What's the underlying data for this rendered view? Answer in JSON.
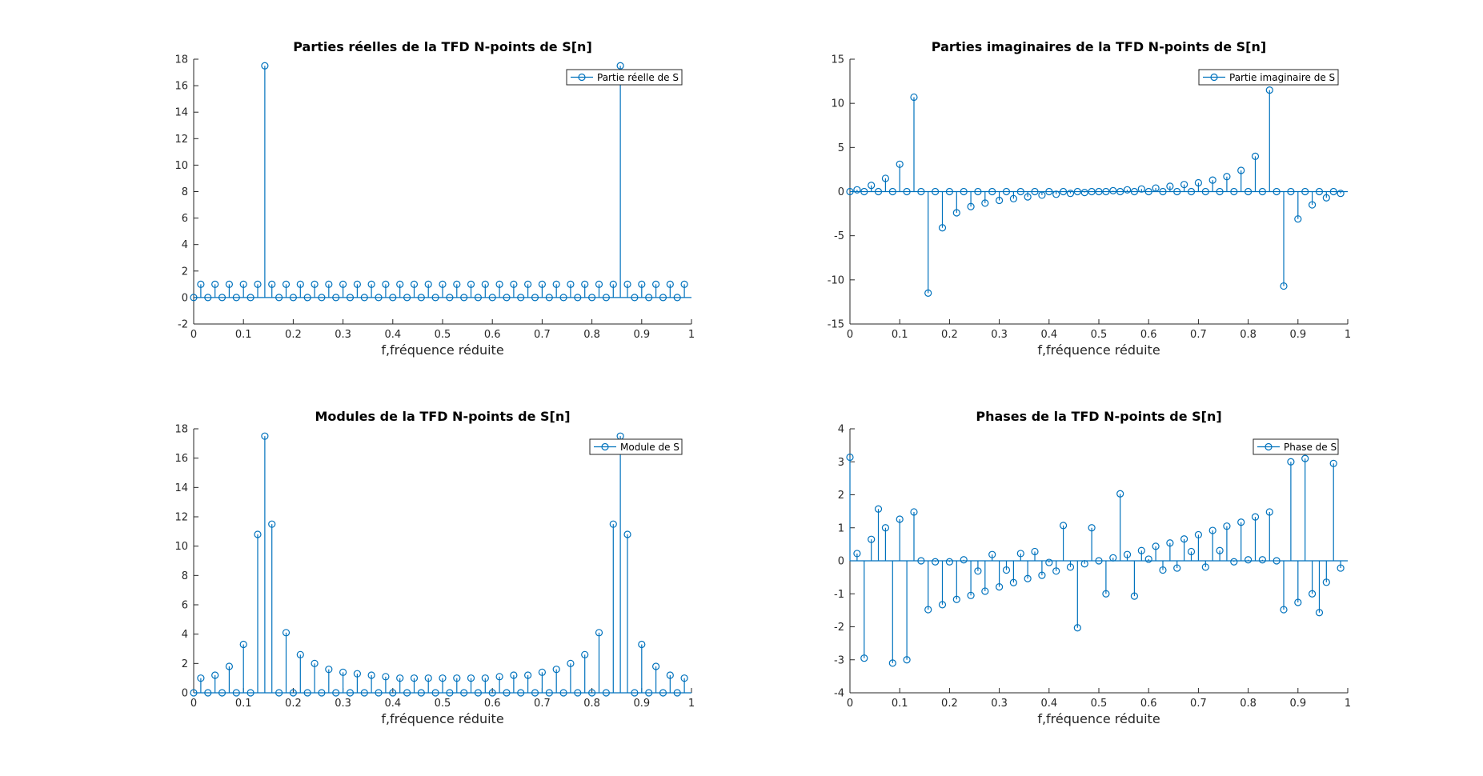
{
  "colors": {
    "series": "#0072BD",
    "axis": "#262626",
    "background": "#ffffff"
  },
  "chart_data": [
    {
      "type": "stem",
      "title": "Parties réelles de la TFD N-points de S[n]",
      "xlabel": "f,fréquence réduite",
      "ylabel": "",
      "xlim": [
        0,
        1
      ],
      "ylim": [
        -2,
        18
      ],
      "xticks": [
        0,
        0.1,
        0.2,
        0.3,
        0.4,
        0.5,
        0.6,
        0.7,
        0.8,
        0.9,
        1
      ],
      "xtick_labels": [
        "0",
        "0.1",
        "0.2",
        "0.3",
        "0.4",
        "0.5",
        "0.6",
        "0.7",
        "0.8",
        "0.9",
        "1"
      ],
      "yticks": [
        -2,
        0,
        2,
        4,
        6,
        8,
        10,
        12,
        14,
        16,
        18
      ],
      "ytick_labels": [
        "-2",
        "0",
        "2",
        "4",
        "6",
        "8",
        "10",
        "12",
        "14",
        "16",
        "18"
      ],
      "legend": {
        "label": "Partie réelle de S",
        "position": "top-right"
      },
      "grid": false,
      "x": [
        0,
        0.0143,
        0.0286,
        0.0429,
        0.0571,
        0.0714,
        0.0857,
        0.1,
        0.1143,
        0.1286,
        0.1429,
        0.1571,
        0.1714,
        0.1857,
        0.2,
        0.2143,
        0.2286,
        0.2429,
        0.2571,
        0.2714,
        0.2857,
        0.3,
        0.3143,
        0.3286,
        0.3429,
        0.3571,
        0.3714,
        0.3857,
        0.4,
        0.4143,
        0.4286,
        0.4429,
        0.4571,
        0.4714,
        0.4857,
        0.5,
        0.5143,
        0.5286,
        0.5429,
        0.5571,
        0.5714,
        0.5857,
        0.6,
        0.6143,
        0.6286,
        0.6429,
        0.6571,
        0.6714,
        0.6857,
        0.7,
        0.7143,
        0.7286,
        0.7429,
        0.7571,
        0.7714,
        0.7857,
        0.8,
        0.8143,
        0.8286,
        0.8429,
        0.8571,
        0.8714,
        0.8857,
        0.9,
        0.9143,
        0.9286,
        0.9429,
        0.9571,
        0.9714,
        0.9857
      ],
      "y": [
        0,
        1,
        0,
        1,
        0,
        1,
        0,
        1,
        0,
        1,
        17.5,
        1,
        0,
        1,
        0,
        1,
        0,
        1,
        0,
        1,
        0,
        1,
        0,
        1,
        0,
        1,
        0,
        1,
        0,
        1,
        0,
        1,
        0,
        1,
        0,
        1,
        0,
        1,
        0,
        1,
        0,
        1,
        0,
        1,
        0,
        1,
        0,
        1,
        0,
        1,
        0,
        1,
        0,
        1,
        0,
        1,
        0,
        1,
        0,
        1,
        17.5,
        1,
        0,
        1,
        0,
        1,
        0,
        1,
        0,
        1
      ]
    },
    {
      "type": "stem",
      "title": "Parties imaginaires de la TFD N-points de S[n]",
      "xlabel": "f,fréquence réduite",
      "ylabel": "",
      "xlim": [
        0,
        1
      ],
      "ylim": [
        -15,
        15
      ],
      "xticks": [
        0,
        0.1,
        0.2,
        0.3,
        0.4,
        0.5,
        0.6,
        0.7,
        0.8,
        0.9,
        1
      ],
      "xtick_labels": [
        "0",
        "0.1",
        "0.2",
        "0.3",
        "0.4",
        "0.5",
        "0.6",
        "0.7",
        "0.8",
        "0.9",
        "1"
      ],
      "yticks": [
        -15,
        -10,
        -5,
        0,
        5,
        10,
        15
      ],
      "ytick_labels": [
        "-15",
        "-10",
        "-5",
        "0",
        "5",
        "10",
        "15"
      ],
      "legend": {
        "label": "Partie imaginaire de S",
        "position": "top-right"
      },
      "grid": false,
      "x": [
        0,
        0.0143,
        0.0286,
        0.0429,
        0.0571,
        0.0714,
        0.0857,
        0.1,
        0.1143,
        0.1286,
        0.1429,
        0.1571,
        0.1714,
        0.1857,
        0.2,
        0.2143,
        0.2286,
        0.2429,
        0.2571,
        0.2714,
        0.2857,
        0.3,
        0.3143,
        0.3286,
        0.3429,
        0.3571,
        0.3714,
        0.3857,
        0.4,
        0.4143,
        0.4286,
        0.4429,
        0.4571,
        0.4714,
        0.4857,
        0.5,
        0.5143,
        0.5286,
        0.5429,
        0.5571,
        0.5714,
        0.5857,
        0.6,
        0.6143,
        0.6286,
        0.6429,
        0.6571,
        0.6714,
        0.6857,
        0.7,
        0.7143,
        0.7286,
        0.7429,
        0.7571,
        0.7714,
        0.7857,
        0.8,
        0.8143,
        0.8286,
        0.8429,
        0.8571,
        0.8714,
        0.8857,
        0.9,
        0.9143,
        0.9286,
        0.9429,
        0.9571,
        0.9714,
        0.9857
      ],
      "y": [
        0,
        0.2,
        0,
        0.7,
        0,
        1.5,
        0,
        3.1,
        0,
        10.7,
        0,
        -11.5,
        0,
        -4.1,
        0,
        -2.4,
        0,
        -1.7,
        0,
        -1.3,
        0,
        -1.0,
        0,
        -0.8,
        0,
        -0.6,
        0,
        -0.4,
        0,
        -0.3,
        0,
        -0.2,
        0,
        -0.1,
        0,
        0,
        0,
        0.1,
        0,
        0.2,
        0,
        0.3,
        0,
        0.4,
        0,
        0.6,
        0,
        0.8,
        0,
        1.0,
        0,
        1.3,
        0,
        1.7,
        0,
        2.4,
        0,
        4.0,
        0,
        11.5,
        0,
        -10.7,
        0,
        -3.1,
        0,
        -1.5,
        0,
        -0.7,
        0,
        -0.2
      ]
    },
    {
      "type": "stem",
      "title": "Modules de la TFD N-points de S[n]",
      "xlabel": "f,fréquence réduite",
      "ylabel": "",
      "xlim": [
        0,
        1
      ],
      "ylim": [
        0,
        18
      ],
      "xticks": [
        0,
        0.1,
        0.2,
        0.3,
        0.4,
        0.5,
        0.6,
        0.7,
        0.8,
        0.9,
        1
      ],
      "xtick_labels": [
        "0",
        "0.1",
        "0.2",
        "0.3",
        "0.4",
        "0.5",
        "0.6",
        "0.7",
        "0.8",
        "0.9",
        "1"
      ],
      "yticks": [
        0,
        2,
        4,
        6,
        8,
        10,
        12,
        14,
        16,
        18
      ],
      "ytick_labels": [
        "0",
        "2",
        "4",
        "6",
        "8",
        "10",
        "12",
        "14",
        "16",
        "18"
      ],
      "legend": {
        "label": "Module de S",
        "position": "top-right"
      },
      "grid": false,
      "x": [
        0,
        0.0143,
        0.0286,
        0.0429,
        0.0571,
        0.0714,
        0.0857,
        0.1,
        0.1143,
        0.1286,
        0.1429,
        0.1571,
        0.1714,
        0.1857,
        0.2,
        0.2143,
        0.2286,
        0.2429,
        0.2571,
        0.2714,
        0.2857,
        0.3,
        0.3143,
        0.3286,
        0.3429,
        0.3571,
        0.3714,
        0.3857,
        0.4,
        0.4143,
        0.4286,
        0.4429,
        0.4571,
        0.4714,
        0.4857,
        0.5,
        0.5143,
        0.5286,
        0.5429,
        0.5571,
        0.5714,
        0.5857,
        0.6,
        0.6143,
        0.6286,
        0.6429,
        0.6571,
        0.6714,
        0.6857,
        0.7,
        0.7143,
        0.7286,
        0.7429,
        0.7571,
        0.7714,
        0.7857,
        0.8,
        0.8143,
        0.8286,
        0.8429,
        0.8571,
        0.8714,
        0.8857,
        0.9,
        0.9143,
        0.9286,
        0.9429,
        0.9571,
        0.9714,
        0.9857
      ],
      "y": [
        0,
        1.0,
        0,
        1.2,
        0,
        1.8,
        0,
        3.3,
        0,
        10.8,
        17.5,
        11.5,
        0,
        4.1,
        0,
        2.6,
        0,
        2.0,
        0,
        1.6,
        0,
        1.4,
        0,
        1.3,
        0,
        1.2,
        0,
        1.1,
        0,
        1.0,
        0,
        1.0,
        0,
        1.0,
        0,
        1.0,
        0,
        1.0,
        0,
        1.0,
        0,
        1.0,
        0,
        1.1,
        0,
        1.2,
        0,
        1.2,
        0,
        1.4,
        0,
        1.6,
        0,
        2.0,
        0,
        2.6,
        0,
        4.1,
        0,
        11.5,
        17.5,
        10.8,
        0,
        3.3,
        0,
        1.8,
        0,
        1.2,
        0,
        1.0
      ]
    },
    {
      "type": "stem",
      "title": "Phases de la TFD N-points de S[n]",
      "xlabel": "f,fréquence réduite",
      "ylabel": "",
      "xlim": [
        0,
        1
      ],
      "ylim": [
        -4,
        4
      ],
      "xticks": [
        0,
        0.1,
        0.2,
        0.3,
        0.4,
        0.5,
        0.6,
        0.7,
        0.8,
        0.9,
        1
      ],
      "xtick_labels": [
        "0",
        "0.1",
        "0.2",
        "0.3",
        "0.4",
        "0.5",
        "0.6",
        "0.7",
        "0.8",
        "0.9",
        "1"
      ],
      "yticks": [
        -4,
        -3,
        -2,
        -1,
        0,
        1,
        2,
        3,
        4
      ],
      "ytick_labels": [
        "-4",
        "-3",
        "-2",
        "-1",
        "0",
        "1",
        "2",
        "3",
        "4"
      ],
      "legend": {
        "label": "Phase de S",
        "position": "top-right"
      },
      "grid": false,
      "x": [
        0,
        0.0143,
        0.0286,
        0.0429,
        0.0571,
        0.0714,
        0.0857,
        0.1,
        0.1143,
        0.1286,
        0.1429,
        0.1571,
        0.1714,
        0.1857,
        0.2,
        0.2143,
        0.2286,
        0.2429,
        0.2571,
        0.2714,
        0.2857,
        0.3,
        0.3143,
        0.3286,
        0.3429,
        0.3571,
        0.3714,
        0.3857,
        0.4,
        0.4143,
        0.4286,
        0.4429,
        0.4571,
        0.4714,
        0.4857,
        0.5,
        0.5143,
        0.5286,
        0.5429,
        0.5571,
        0.5714,
        0.5857,
        0.6,
        0.6143,
        0.6286,
        0.6429,
        0.6571,
        0.6714,
        0.6857,
        0.7,
        0.7143,
        0.7286,
        0.7429,
        0.7571,
        0.7714,
        0.7857,
        0.8,
        0.8143,
        0.8286,
        0.8429,
        0.8571,
        0.8714,
        0.8857,
        0.9,
        0.9143,
        0.9286,
        0.9429,
        0.9571,
        0.9714,
        0.9857
      ],
      "y": [
        3.14,
        0.22,
        -2.95,
        0.65,
        1.57,
        1.0,
        -3.1,
        1.26,
        -3.0,
        1.48,
        0,
        -1.48,
        -0.03,
        -1.33,
        -0.03,
        -1.17,
        0.03,
        -1.05,
        -0.31,
        -0.92,
        0.19,
        -0.79,
        -0.28,
        -0.66,
        0.22,
        -0.54,
        0.28,
        -0.44,
        -0.05,
        -0.31,
        1.07,
        -0.19,
        -2.03,
        -0.09,
        1.0,
        0,
        -1.0,
        0.09,
        2.03,
        0.19,
        -1.07,
        0.31,
        0.05,
        0.44,
        -0.28,
        0.54,
        -0.22,
        0.66,
        0.28,
        0.79,
        -0.19,
        0.92,
        0.31,
        1.05,
        -0.03,
        1.17,
        0.03,
        1.33,
        0.03,
        1.48,
        0,
        -1.48,
        3.0,
        -1.26,
        3.1,
        -1.0,
        -1.57,
        -0.65,
        2.95,
        -0.22
      ]
    }
  ]
}
